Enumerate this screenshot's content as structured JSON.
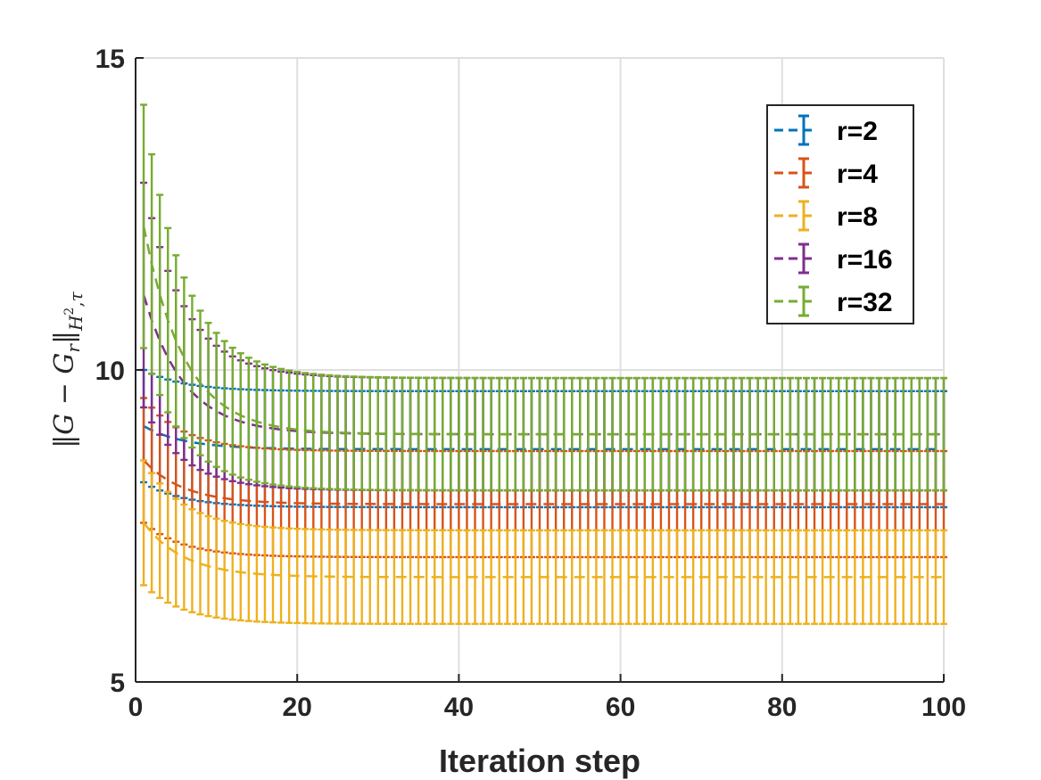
{
  "chart_data": {
    "type": "line",
    "title": "",
    "xlabel": "Iteration step",
    "ylabel": "||G − G_r||_{H²,τ}",
    "ylabel_parts": {
      "open": "‖",
      "g": "G",
      "minus": " − ",
      "gr": "G",
      "r_sub": "r",
      "close": "‖",
      "h": "H",
      "h_sup": "2",
      "comma": ",",
      "tau": "τ"
    },
    "xlim": [
      0,
      100
    ],
    "ylim": [
      5,
      15
    ],
    "xticks": [
      0,
      20,
      40,
      60,
      80,
      100
    ],
    "xtick_labels": [
      "0",
      "20",
      "40",
      "60",
      "80",
      "100"
    ],
    "yticks": [
      5,
      10,
      15
    ],
    "ytick_labels": [
      "5",
      "10",
      "15"
    ],
    "grid": true,
    "legend_position": "top-right",
    "errorbar": true,
    "series": [
      {
        "name": "r=2",
        "color": "#0072BD",
        "mean_start": 9.1,
        "mean_end": 8.73,
        "err_start": 0.9,
        "err_end": 0.93
      },
      {
        "name": "r=4",
        "color": "#D95319",
        "mean_start": 8.55,
        "mean_end": 7.85,
        "err_start": 1.0,
        "err_end": 0.85
      },
      {
        "name": "r=8",
        "color": "#EDB120",
        "mean_start": 7.55,
        "mean_end": 6.68,
        "err_start": 1.0,
        "err_end": 0.75
      },
      {
        "name": "r=16",
        "color": "#7E2F8E",
        "mean_start": 11.2,
        "mean_end": 8.97,
        "err_start": 1.8,
        "err_end": 0.9
      },
      {
        "name": "r=32",
        "color": "#77AC30",
        "mean_start": 12.3,
        "mean_end": 8.97,
        "err_start": 1.95,
        "err_end": 0.9
      }
    ],
    "num_points": 100
  }
}
